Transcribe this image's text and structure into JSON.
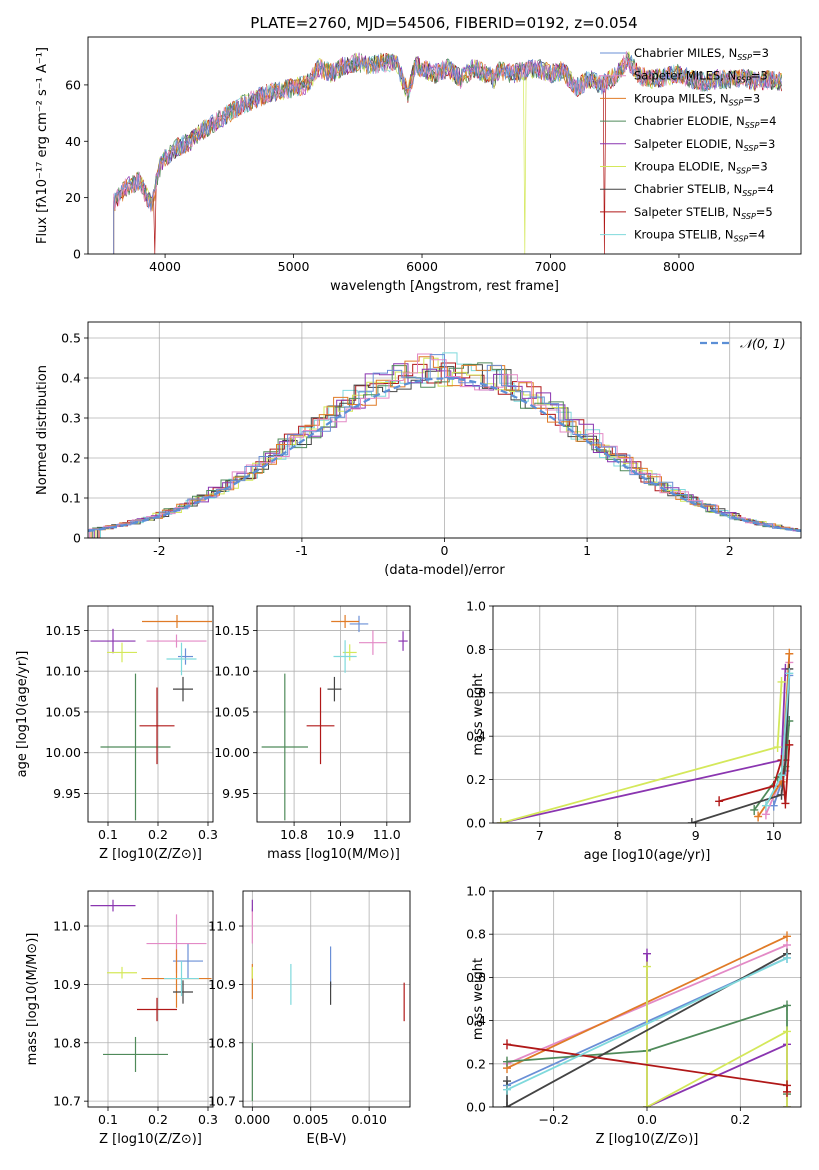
{
  "figure_title": "PLATE=2760, MJD=54506, FIBERID=0192, z=0.054",
  "chart_data": [
    {
      "id": "spectrum",
      "type": "line",
      "title": "PLATE=2760, MJD=54506, FIBERID=0192, z=0.054",
      "xlabel": "wavelength [Angstrom, rest frame]",
      "ylabel": "Flux [fλ10⁻¹⁷ erg cm⁻² s⁻¹ A⁻¹]",
      "xlim": [
        3400,
        8950
      ],
      "ylim": [
        0,
        77
      ],
      "xticks": [
        4000,
        5000,
        6000,
        7000,
        8000
      ],
      "yticks": [
        0,
        20,
        40,
        60
      ],
      "grid": false,
      "legend_position": "top-right",
      "x": [
        3600,
        3700,
        3800,
        3850,
        3900,
        3950,
        4000,
        4100,
        4200,
        4300,
        4400,
        4500,
        4600,
        4700,
        4800,
        4900,
        5000,
        5100,
        5200,
        5300,
        5400,
        5500,
        5600,
        5700,
        5800,
        5890,
        5950,
        6000,
        6100,
        6200,
        6300,
        6400,
        6500,
        6563,
        6600,
        6700,
        6800,
        6900,
        7000,
        7100,
        7200,
        7300,
        7400,
        7500,
        7600,
        7700,
        7800,
        7900,
        8000,
        8100,
        8200,
        8300,
        8400,
        8500,
        8600,
        8700,
        8800
      ],
      "y": [
        18,
        24,
        26,
        21,
        17,
        30,
        34,
        38,
        40,
        44,
        47,
        50,
        53,
        55,
        57,
        58,
        59,
        60,
        66,
        64,
        67,
        68,
        67,
        68,
        68,
        57,
        67,
        66,
        64,
        66,
        62,
        66,
        64,
        62,
        65,
        64,
        65,
        66,
        64,
        65,
        59,
        62,
        60,
        63,
        69,
        63,
        62,
        63,
        64,
        62,
        61,
        62,
        62,
        63,
        61,
        62,
        61
      ],
      "series": [
        {
          "name": "Chabrier MILES, N_SSP=3",
          "label_main": "Chabrier MILES, N",
          "sub": "SSP",
          "label_tail": "=3",
          "color": "#6a8fd6"
        },
        {
          "name": "Salpeter MILES, N_SSP=3",
          "label_main": "Salpeter MILES, N",
          "sub": "SSP",
          "label_tail": "=3",
          "color": "#e38ac6"
        },
        {
          "name": "Kroupa MILES, N_SSP=3",
          "label_main": "Kroupa MILES, N",
          "sub": "SSP",
          "label_tail": "=3",
          "color": "#e07b27"
        },
        {
          "name": "Chabrier ELODIE, N_SSP=4",
          "label_main": "Chabrier ELODIE, N",
          "sub": "SSP",
          "label_tail": "=4",
          "color": "#4f8a5a"
        },
        {
          "name": "Salpeter ELODIE, N_SSP=3",
          "label_main": "Salpeter ELODIE, N",
          "sub": "SSP",
          "label_tail": "=3",
          "color": "#8a35b0"
        },
        {
          "name": "Kroupa ELODIE, N_SSP=3",
          "label_main": "Kroupa ELODIE, N",
          "sub": "SSP",
          "label_tail": "=3",
          "color": "#d4e85a"
        },
        {
          "name": "Chabrier STELIB, N_SSP=4",
          "label_main": "Chabrier STELIB, N",
          "sub": "SSP",
          "label_tail": "=4",
          "color": "#444444"
        },
        {
          "name": "Salpeter STELIB, N_SSP=5",
          "label_main": "Salpeter STELIB, N",
          "sub": "SSP",
          "label_tail": "=5",
          "color": "#b01818"
        },
        {
          "name": "Kroupa STELIB, N_SSP=4",
          "label_main": "Kroupa STELIB, N",
          "sub": "SSP",
          "label_tail": "=4",
          "color": "#7fd9dc"
        }
      ]
    },
    {
      "id": "residuals",
      "type": "histogram",
      "xlabel": "(data-model)/error",
      "ylabel": "Normed distribution",
      "xlim": [
        -2.5,
        2.5
      ],
      "ylim": [
        0,
        0.54
      ],
      "xticks": [
        -2,
        -1,
        0,
        1,
        2
      ],
      "yticks": [
        0.0,
        0.1,
        0.2,
        0.3,
        0.4,
        0.5
      ],
      "grid": true,
      "legend_position": "top-right",
      "reference_curve": {
        "name": "𝒩(0, 1)",
        "mean": 0,
        "sigma": 1,
        "color": "#5b8fd6",
        "style": "dashed"
      },
      "bin_width": 0.1,
      "hist_envelope": {
        "x": [
          -2.5,
          -2.0,
          -1.5,
          -1.0,
          -0.5,
          0.0,
          0.5,
          1.0,
          1.5,
          2.0,
          2.5
        ],
        "y": [
          0.02,
          0.06,
          0.13,
          0.26,
          0.36,
          0.42,
          0.36,
          0.25,
          0.12,
          0.06,
          0.03
        ]
      }
    },
    {
      "id": "age-vs-Z",
      "type": "scatter",
      "xlabel": "Z [log10(Z/Z⊙)]",
      "ylabel": "age [log10(age/yr)]",
      "xlim": [
        0.06,
        0.31
      ],
      "ylim": [
        9.915,
        10.18
      ],
      "xticks": [
        "0.1",
        "0.2",
        "0.3"
      ],
      "yticks": [
        "9.95",
        "10.00",
        "10.05",
        "10.10",
        "10.15"
      ],
      "grid": true,
      "points": [
        {
          "series": 0,
          "x": 0.255,
          "y": 10.118,
          "xerr": 0.015,
          "yerr": 0.01
        },
        {
          "series": 1,
          "x": 0.237,
          "y": 10.137,
          "xerr": 0.06,
          "yerr": 0.008
        },
        {
          "series": 2,
          "x": 0.238,
          "y": 10.161,
          "xerr": 0.07,
          "yerr": 0.008
        },
        {
          "series": 3,
          "x": 0.155,
          "y": 10.007,
          "xerr": 0.07,
          "yerr": 0.09
        },
        {
          "series": 4,
          "x": 0.11,
          "y": 10.137,
          "xerr": 0.045,
          "yerr": 0.015
        },
        {
          "series": 5,
          "x": 0.128,
          "y": 10.123,
          "xerr": 0.03,
          "yerr": 0.012
        },
        {
          "series": 6,
          "x": 0.25,
          "y": 10.078,
          "xerr": 0.02,
          "yerr": 0.015
        },
        {
          "series": 7,
          "x": 0.198,
          "y": 10.033,
          "xerr": 0.035,
          "yerr": 0.047
        },
        {
          "series": 8,
          "x": 0.247,
          "y": 10.115,
          "xerr": 0.03,
          "yerr": 0.02
        }
      ]
    },
    {
      "id": "age-vs-mass",
      "type": "scatter",
      "xlabel": "mass [log10(M/M⊙)]",
      "ylabel": "",
      "xlim": [
        10.72,
        11.05
      ],
      "ylim": [
        9.915,
        10.18
      ],
      "xticks": [
        "10.8",
        "10.9",
        "11.0"
      ],
      "yticks": [
        "9.95",
        "10.00",
        "10.05",
        "10.10",
        "10.15"
      ],
      "grid": true,
      "points": [
        {
          "series": 0,
          "x": 10.94,
          "y": 10.158,
          "xerr": 0.02,
          "yerr": 0.01
        },
        {
          "series": 1,
          "x": 10.97,
          "y": 10.135,
          "xerr": 0.03,
          "yerr": 0.015
        },
        {
          "series": 2,
          "x": 10.91,
          "y": 10.161,
          "xerr": 0.03,
          "yerr": 0.008
        },
        {
          "series": 3,
          "x": 10.78,
          "y": 10.007,
          "xerr": 0.05,
          "yerr": 0.09
        },
        {
          "series": 4,
          "x": 11.035,
          "y": 10.137,
          "xerr": 0.01,
          "yerr": 0.012
        },
        {
          "series": 5,
          "x": 10.92,
          "y": 10.123,
          "xerr": 0.015,
          "yerr": 0.01
        },
        {
          "series": 6,
          "x": 10.887,
          "y": 10.078,
          "xerr": 0.015,
          "yerr": 0.015
        },
        {
          "series": 7,
          "x": 10.857,
          "y": 10.033,
          "xerr": 0.03,
          "yerr": 0.047
        },
        {
          "series": 8,
          "x": 10.91,
          "y": 10.118,
          "xerr": 0.025,
          "yerr": 0.02
        }
      ]
    },
    {
      "id": "mw-vs-age",
      "type": "line",
      "xlabel": "age [log10(age/yr)]",
      "ylabel": "mass weight",
      "xlim": [
        6.4,
        10.35
      ],
      "ylim": [
        0,
        1
      ],
      "xticks": [
        "7",
        "8",
        "9",
        "10"
      ],
      "yticks": [
        "0.0",
        "0.2",
        "0.4",
        "0.6",
        "0.8",
        "1.0"
      ],
      "grid": true,
      "lines": [
        {
          "series": 0,
          "x": [
            10.0,
            10.15,
            10.2
          ],
          "y": [
            0.08,
            0.24,
            0.68
          ]
        },
        {
          "series": 1,
          "x": [
            9.9,
            10.12,
            10.2
          ],
          "y": [
            0.04,
            0.22,
            0.74
          ]
        },
        {
          "series": 2,
          "x": [
            9.8,
            10.1,
            10.2
          ],
          "y": [
            0.03,
            0.19,
            0.78
          ]
        },
        {
          "series": 3,
          "x": [
            9.75,
            10.05,
            10.15,
            10.2
          ],
          "y": [
            0.06,
            0.21,
            0.26,
            0.47
          ]
        },
        {
          "series": 4,
          "x": [
            6.5,
            10.1,
            10.15
          ],
          "y": [
            0.0,
            0.29,
            0.71
          ]
        },
        {
          "series": 5,
          "x": [
            6.5,
            10.05,
            10.1
          ],
          "y": [
            0.0,
            0.35,
            0.65
          ]
        },
        {
          "series": 6,
          "x": [
            8.95,
            10.1,
            10.15,
            10.2
          ],
          "y": [
            0.0,
            0.13,
            0.29,
            0.71
          ]
        },
        {
          "series": 7,
          "x": [
            9.3,
            10.0,
            10.1,
            10.15,
            10.2
          ],
          "y": [
            0.1,
            0.17,
            0.29,
            0.09,
            0.36
          ]
        },
        {
          "series": 8,
          "x": [
            9.9,
            10.1,
            10.2
          ],
          "y": [
            0.08,
            0.22,
            0.69
          ]
        }
      ]
    },
    {
      "id": "mass-vs-Z",
      "type": "scatter",
      "xlabel": "Z [log10(Z/Z⊙)]",
      "ylabel": "mass [log10(M/M⊙)]",
      "xlim": [
        0.06,
        0.31
      ],
      "ylim": [
        10.69,
        11.06
      ],
      "xticks": [
        "0.1",
        "0.2",
        "0.3"
      ],
      "yticks": [
        "10.7",
        "10.8",
        "10.9",
        "11.0"
      ],
      "grid": true,
      "points": [
        {
          "series": 0,
          "x": 0.26,
          "y": 10.94,
          "xerr": 0.03,
          "yerr": 0.03
        },
        {
          "series": 1,
          "x": 0.237,
          "y": 10.97,
          "xerr": 0.06,
          "yerr": 0.05
        },
        {
          "series": 2,
          "x": 0.237,
          "y": 10.91,
          "xerr": 0.07,
          "yerr": 0.05
        },
        {
          "series": 3,
          "x": 0.155,
          "y": 10.78,
          "xerr": 0.065,
          "yerr": 0.03
        },
        {
          "series": 4,
          "x": 0.11,
          "y": 11.035,
          "xerr": 0.045,
          "yerr": 0.01
        },
        {
          "series": 5,
          "x": 0.128,
          "y": 10.92,
          "xerr": 0.03,
          "yerr": 0.01
        },
        {
          "series": 6,
          "x": 0.25,
          "y": 10.887,
          "xerr": 0.02,
          "yerr": 0.02
        },
        {
          "series": 7,
          "x": 0.198,
          "y": 10.857,
          "xerr": 0.04,
          "yerr": 0.02
        },
        {
          "series": 8,
          "x": 0.247,
          "y": 10.91,
          "xerr": 0.035,
          "yerr": 0.03
        }
      ]
    },
    {
      "id": "mass-vs-ebv",
      "type": "scatter",
      "xlabel": "E(B-V)",
      "ylabel": "",
      "xlim": [
        -0.0008,
        0.0135
      ],
      "ylim": [
        10.69,
        11.06
      ],
      "xticks": [
        "0.000",
        "0.005",
        "0.010"
      ],
      "yticks": [
        "10.7",
        "10.8",
        "10.9",
        "11.0"
      ],
      "grid": true,
      "points": [
        {
          "series": 0,
          "x": 0.0067,
          "y": 10.93,
          "xerr": 0,
          "yerr": 0.035
        },
        {
          "series": 1,
          "x": 0.0,
          "y": 11.0,
          "xerr": 0,
          "yerr": 0.03
        },
        {
          "series": 2,
          "x": 0.0,
          "y": 10.905,
          "xerr": 0,
          "yerr": 0.03
        },
        {
          "series": 3,
          "x": 0.0,
          "y": 10.75,
          "xerr": 0,
          "yerr": 0.05
        },
        {
          "series": 4,
          "x": 0.0,
          "y": 11.035,
          "xerr": 0,
          "yerr": 0.01
        },
        {
          "series": 5,
          "x": 0.0,
          "y": 10.92,
          "xerr": 0,
          "yerr": 0.01
        },
        {
          "series": 6,
          "x": 0.0067,
          "y": 10.885,
          "xerr": 0,
          "yerr": 0.02
        },
        {
          "series": 7,
          "x": 0.013,
          "y": 10.87,
          "xerr": 0,
          "yerr": 0.033
        },
        {
          "series": 8,
          "x": 0.0033,
          "y": 10.9,
          "xerr": 0,
          "yerr": 0.035
        }
      ]
    },
    {
      "id": "mw-vs-Z",
      "type": "line",
      "xlabel": "Z [log10(Z/Z⊙)]",
      "ylabel": "mass weight",
      "xlim": [
        -0.33,
        0.33
      ],
      "ylim": [
        0,
        1
      ],
      "xticks": [
        "−0.2",
        "0.0",
        "0.2"
      ],
      "yticks": [
        "0.0",
        "0.2",
        "0.4",
        "0.6",
        "0.8",
        "1.0"
      ],
      "grid": true,
      "lines": [
        {
          "series": 0,
          "x": [
            -0.3,
            0.3
          ],
          "y": [
            0.1,
            0.69
          ]
        },
        {
          "series": 1,
          "x": [
            -0.3,
            0.3
          ],
          "y": [
            0.2,
            0.75
          ]
        },
        {
          "series": 2,
          "x": [
            -0.3,
            0.3
          ],
          "y": [
            0.18,
            0.79
          ]
        },
        {
          "series": 3,
          "x": [
            -0.3,
            0.0,
            0.3,
            0.3
          ],
          "y": [
            0.21,
            0.26,
            0.47,
            0.06
          ]
        },
        {
          "series": 4,
          "x": [
            0.0,
            0.0,
            0.3,
            0.3
          ],
          "y": [
            0.71,
            0.0,
            0.29,
            0.0
          ]
        },
        {
          "series": 5,
          "x": [
            0.0,
            0.0,
            0.3,
            0.3
          ],
          "y": [
            0.65,
            0.0,
            0.35,
            0.0
          ]
        },
        {
          "series": 6,
          "x": [
            -0.3,
            -0.3,
            0.3
          ],
          "y": [
            0.12,
            0.0,
            0.71
          ]
        },
        {
          "series": 7,
          "x": [
            -0.3,
            0.3,
            0.3
          ],
          "y": [
            0.29,
            0.1,
            0.07
          ]
        },
        {
          "series": 8,
          "x": [
            -0.3,
            0.3
          ],
          "y": [
            0.08,
            0.69
          ]
        }
      ]
    }
  ]
}
